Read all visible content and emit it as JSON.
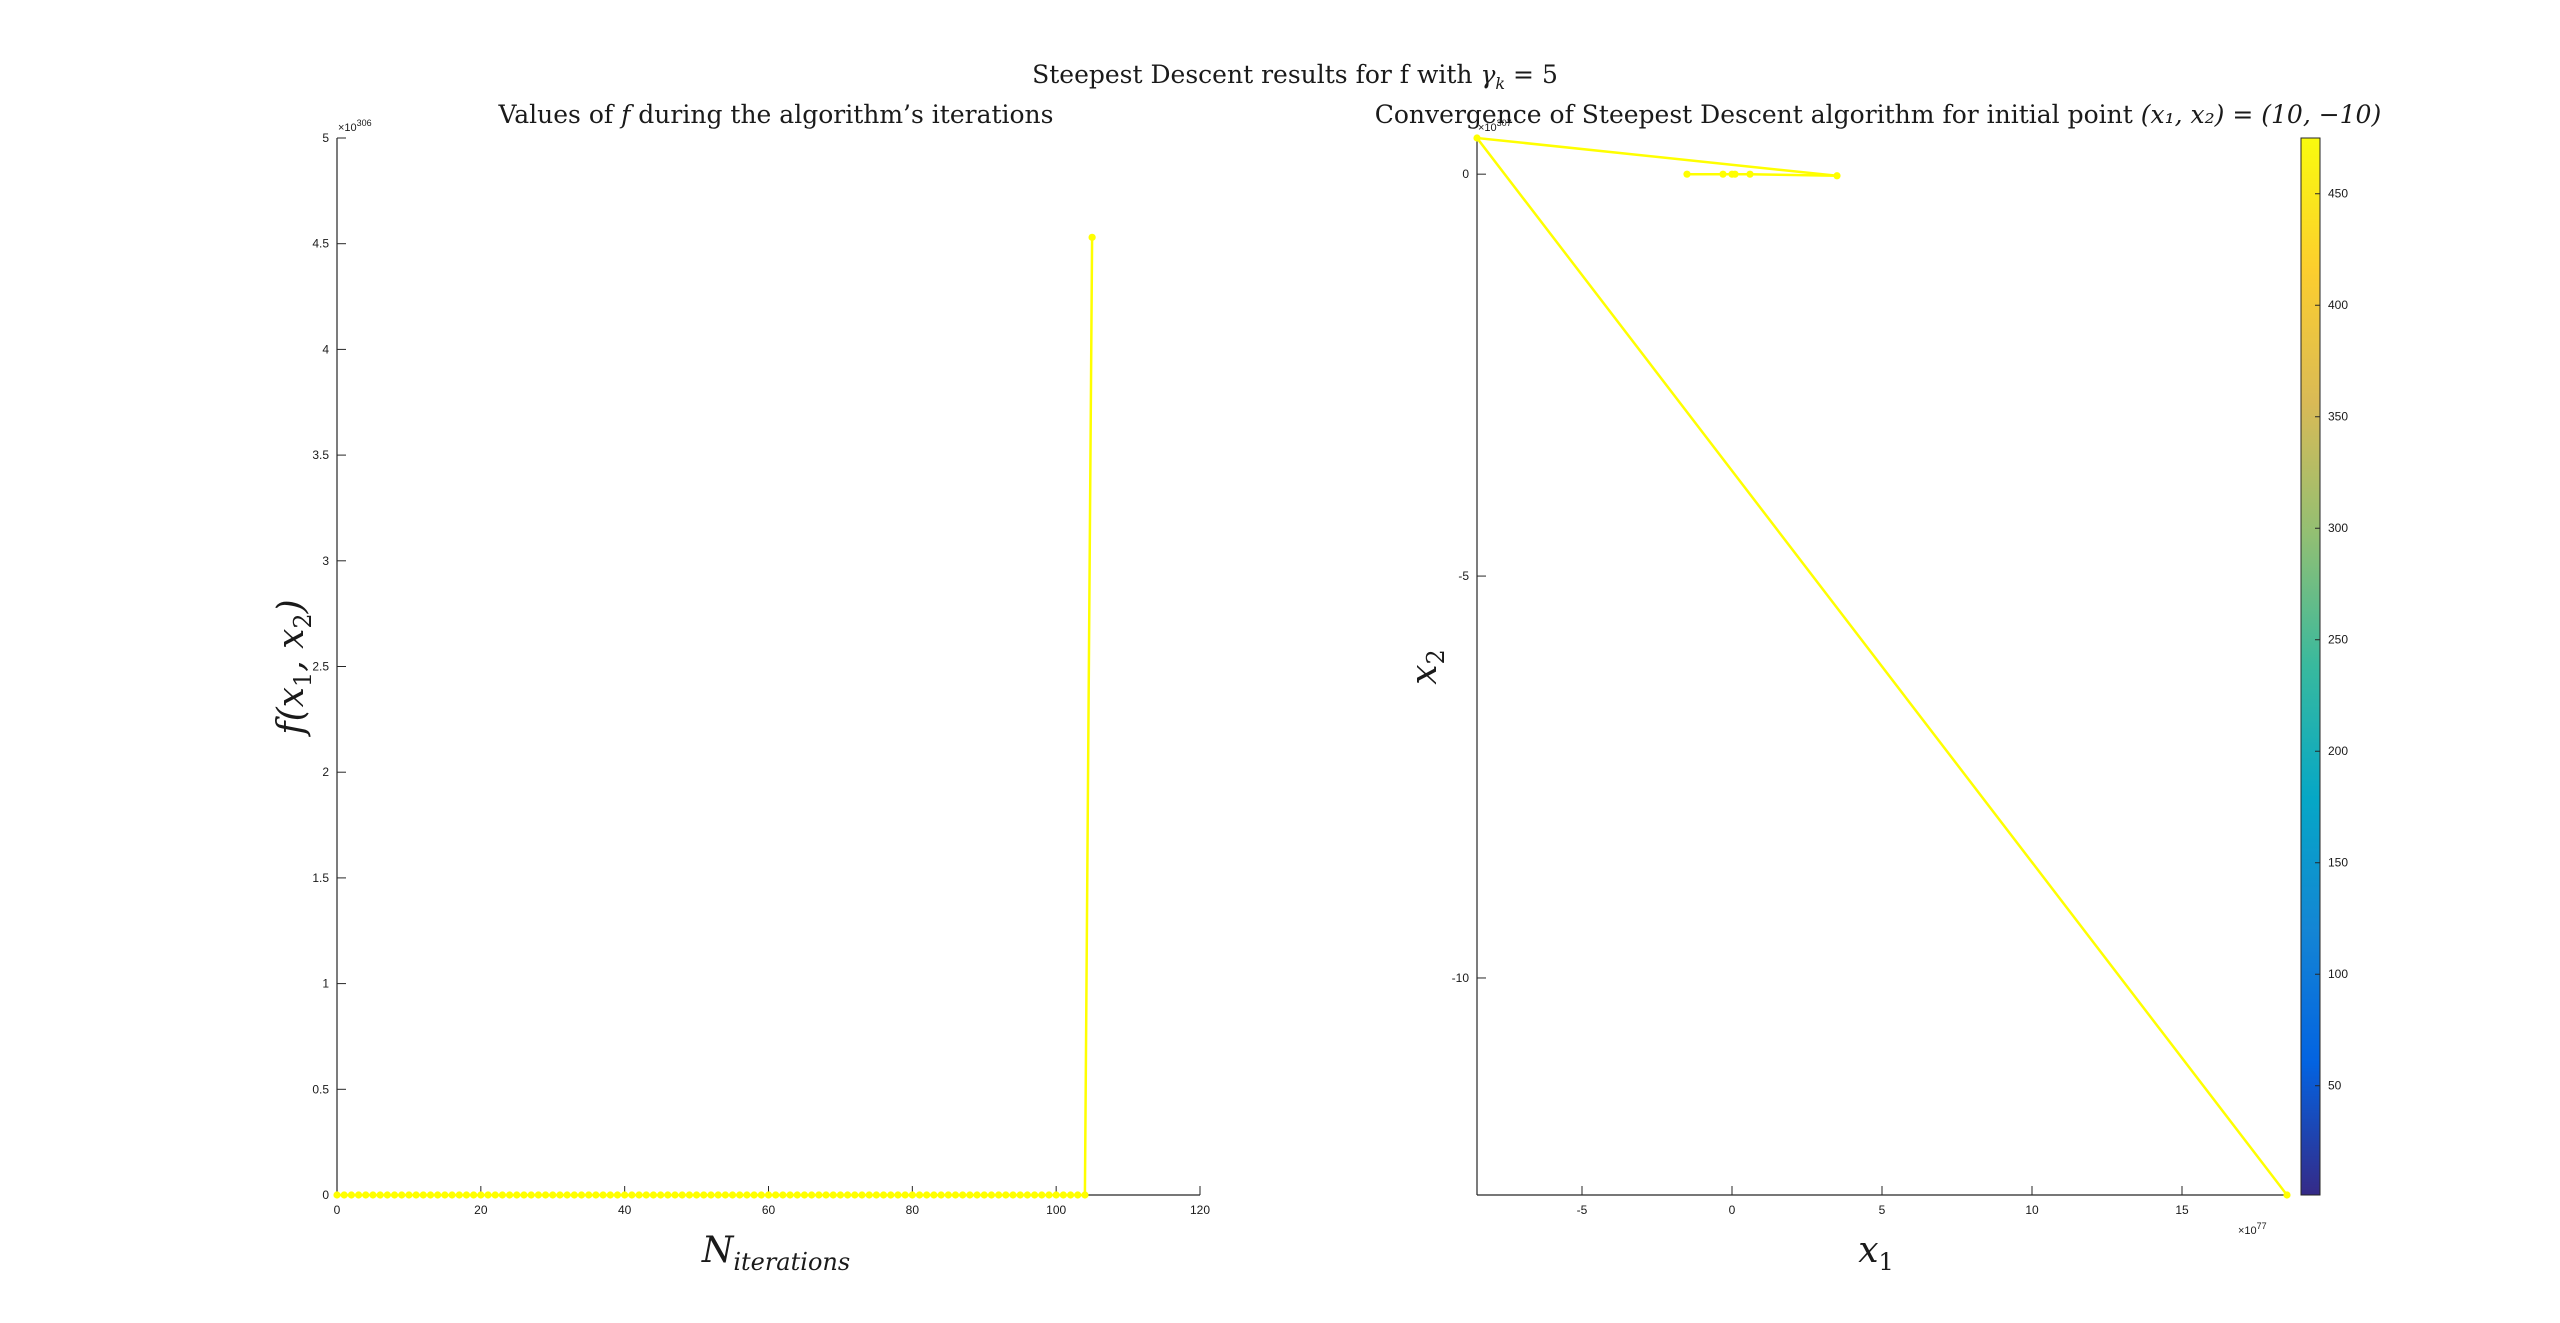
{
  "figure": {
    "suptitle_prefix": "Steepest Descent results for f with ",
    "suptitle_math": "γ",
    "suptitle_sub": "k",
    "suptitle_suffix": " = 5"
  },
  "chart_data": [
    {
      "type": "line",
      "title_prefix": "Values of ",
      "title_math": "f",
      "title_suffix": " during the algorithm’s iterations",
      "xlabel_main": "N",
      "xlabel_sub": "iterations",
      "ylabel_main": "f(x",
      "ylabel_sub1": "1",
      "ylabel_mid": ", x",
      "ylabel_sub2": "2",
      "ylabel_end": ")",
      "xlim": [
        0,
        120
      ],
      "ylim": [
        0,
        5
      ],
      "y_exponent_base": "×10",
      "y_exponent_power": "306",
      "x_ticks": [
        0,
        20,
        40,
        60,
        80,
        100,
        120
      ],
      "y_ticks": [
        0,
        0.5,
        1,
        1.5,
        2,
        2.5,
        3,
        3.5,
        4,
        4.5,
        5
      ],
      "series_color": "#ffff00",
      "marker": "dot",
      "grid": false,
      "x": [
        0,
        1,
        2,
        3,
        4,
        5,
        6,
        7,
        8,
        9,
        10,
        11,
        12,
        13,
        14,
        15,
        16,
        17,
        18,
        19,
        20,
        21,
        22,
        23,
        24,
        25,
        26,
        27,
        28,
        29,
        30,
        31,
        32,
        33,
        34,
        35,
        36,
        37,
        38,
        39,
        40,
        41,
        42,
        43,
        44,
        45,
        46,
        47,
        48,
        49,
        50,
        51,
        52,
        53,
        54,
        55,
        56,
        57,
        58,
        59,
        60,
        61,
        62,
        63,
        64,
        65,
        66,
        67,
        68,
        69,
        70,
        71,
        72,
        73,
        74,
        75,
        76,
        77,
        78,
        79,
        80,
        81,
        82,
        83,
        84,
        85,
        86,
        87,
        88,
        89,
        90,
        91,
        92,
        93,
        94,
        95,
        96,
        97,
        98,
        99,
        100,
        101,
        102,
        103,
        104,
        105
      ],
      "y": [
        0,
        0,
        0,
        0,
        0,
        0,
        0,
        0,
        0,
        0,
        0,
        0,
        0,
        0,
        0,
        0,
        0,
        0,
        0,
        0,
        0,
        0,
        0,
        0,
        0,
        0,
        0,
        0,
        0,
        0,
        0,
        0,
        0,
        0,
        0,
        0,
        0,
        0,
        0,
        0,
        0,
        0,
        0,
        0,
        0,
        0,
        0,
        0,
        0,
        0,
        0,
        0,
        0,
        0,
        0,
        0,
        0,
        0,
        0,
        0,
        0,
        0,
        0,
        0,
        0,
        0,
        0,
        0,
        0,
        0,
        0,
        0,
        0,
        0,
        0,
        0,
        0,
        0,
        0,
        0,
        0,
        0,
        0,
        0,
        0,
        0,
        0,
        0,
        0,
        0,
        0,
        0,
        0,
        0,
        0,
        0,
        0,
        0,
        0,
        0,
        0,
        0,
        0,
        0,
        0,
        4.53
      ]
    },
    {
      "type": "line",
      "title_prefix": "Convergence of Steepest Descent algorithm for initial point ",
      "title_math": "(x₁, x₂) = (10, −10)",
      "xlabel_main": "x",
      "xlabel_sub": "1",
      "ylabel_main": "x",
      "ylabel_sub": "2",
      "xlim": [
        -8.5,
        18.5
      ],
      "ylim": [
        -12.7,
        0.45
      ],
      "x_exponent_base": "×10",
      "x_exponent_power": "77",
      "y_exponent_base": "×10",
      "y_exponent_power": "307",
      "x_ticks": [
        -5,
        0,
        5,
        10,
        15
      ],
      "y_ticks": [
        0,
        -5,
        -10
      ],
      "series_color": "#ffff00",
      "marker": "dot",
      "grid": false,
      "x": [
        -1.5,
        -0.3,
        0.1,
        0.0,
        0.6,
        3.5,
        -8.5,
        18.5
      ],
      "y": [
        0.0,
        0.0,
        0.0,
        0.0,
        0.0,
        -0.02,
        0.45,
        -12.7
      ],
      "colorbar": {
        "colormap": "parula",
        "range": [
          1,
          475
        ],
        "ticks": [
          50,
          100,
          150,
          200,
          250,
          300,
          350,
          400,
          450
        ]
      }
    }
  ]
}
